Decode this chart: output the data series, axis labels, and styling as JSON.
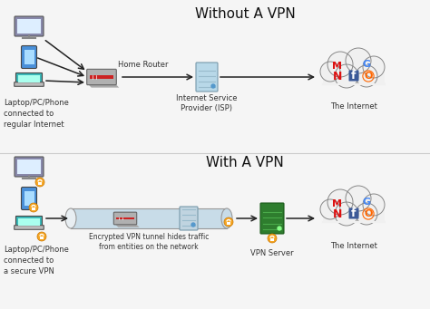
{
  "title_top": "Without A VPN",
  "title_bottom": "With A VPN",
  "bg_color": "#f5f5f5",
  "label_devices_top": "Laptop/PC/Phone\nconnected to\nregular Internet",
  "label_devices_bottom": "Laptop/PC/Phone\nconnected to\na secure VPN",
  "label_router": "Home Router",
  "label_isp": "Internet Service\nProvider (ISP)",
  "label_internet": "The Internet",
  "label_vpn_tunnel": "Encrypted VPN tunnel hides traffic\nfrom entities on the network",
  "label_vpn_server": "VPN Server",
  "arrow_color": "#222222",
  "cloud_fill": "#f0f0f0",
  "cloud_outline": "#888888",
  "isp_color": "#b8d8e8",
  "vpn_server_color": "#2e7d2e",
  "vpn_server_stripe": "#3a9a3a",
  "tunnel_fill": "#c8dce8",
  "tunnel_outline": "#999999",
  "lock_color": "#f5a623",
  "router_body": "#cccccc",
  "router_stripe": "#cc2222",
  "font_title_size": 11,
  "font_label_size": 6,
  "font_small_size": 5.5,
  "monitor_color": "#8888aa",
  "phone_color": "#4a90d9",
  "laptop_color": "#3ab8b8",
  "divider_color": "#cccccc"
}
